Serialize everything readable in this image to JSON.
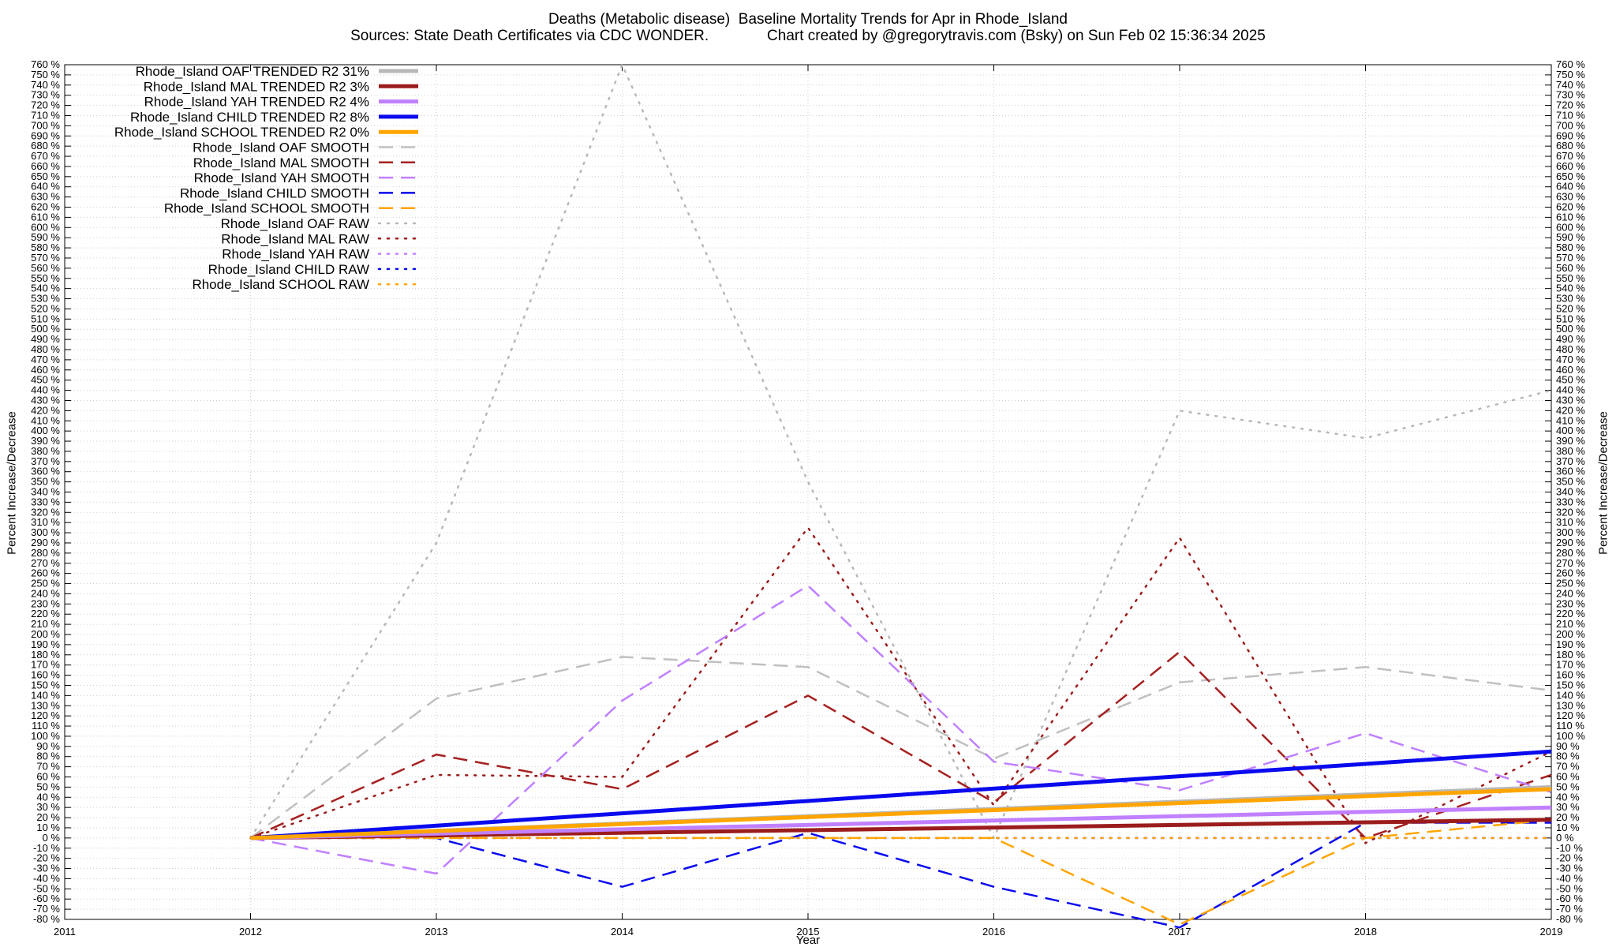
{
  "chart_data": {
    "type": "line",
    "title": "Deaths (Metabolic disease)  Baseline Mortality Trends for Apr in Rhode_Island",
    "subtitle": "Sources: State Death Certificates via CDC WONDER.              Chart created by @gregorytravis.com (Bsky) on Sun Feb 02 15:36:34 2025",
    "xlabel": "Year",
    "ylabel": "Percent Increase/Decrease",
    "ylabel_right": "Percent Increase/Decrease",
    "xlim": [
      2011,
      2019
    ],
    "ylim": [
      -80,
      760
    ],
    "x_ticks": [
      2011,
      2012,
      2013,
      2014,
      2015,
      2016,
      2017,
      2018,
      2019
    ],
    "y_tick_step": 10,
    "y_tick_suffix": " %",
    "grid": true,
    "legend_position": "top-left",
    "x": [
      2012,
      2013,
      2014,
      2015,
      2016,
      2017,
      2018,
      2019
    ],
    "series": [
      {
        "name": "Rhode_Island OAF TRENDED R2  31%",
        "color": "#b8b8b8",
        "style": "solid",
        "width": 5,
        "x": [
          2012,
          2019
        ],
        "values": [
          0,
          50
        ]
      },
      {
        "name": "Rhode_Island MAL TRENDED R2   3%",
        "color": "#9b1c1c",
        "style": "solid",
        "width": 5,
        "x": [
          2012,
          2019
        ],
        "values": [
          0,
          18
        ]
      },
      {
        "name": "Rhode_Island YAH TRENDED R2   4%",
        "color": "#c080ff",
        "style": "solid",
        "width": 5,
        "x": [
          2012,
          2019
        ],
        "values": [
          0,
          30
        ]
      },
      {
        "name": "Rhode_Island CHILD TRENDED R2   8%",
        "color": "#0a0aee",
        "style": "solid",
        "width": 5,
        "x": [
          2012,
          2019
        ],
        "values": [
          0,
          85
        ]
      },
      {
        "name": "Rhode_Island SCHOOL TRENDED R2   0%",
        "color": "#ffa500",
        "style": "solid",
        "width": 5,
        "x": [
          2012,
          2019
        ],
        "values": [
          0,
          48
        ]
      },
      {
        "name": "Rhode_Island OAF SMOOTH",
        "color": "#c0c0c0",
        "style": "dash",
        "width": 2.5,
        "values": [
          0,
          137,
          178,
          168,
          78,
          153,
          168,
          145
        ]
      },
      {
        "name": "Rhode_Island MAL SMOOTH",
        "color": "#a52020",
        "style": "dash",
        "width": 2.5,
        "values": [
          0,
          82,
          48,
          140,
          35,
          183,
          0,
          62
        ]
      },
      {
        "name": "Rhode_Island YAH SMOOTH",
        "color": "#c080ff",
        "style": "dash",
        "width": 2.5,
        "values": [
          0,
          -35,
          135,
          248,
          75,
          47,
          103,
          45
        ]
      },
      {
        "name": "Rhode_Island CHILD SMOOTH",
        "color": "#0a0aee",
        "style": "dash",
        "width": 2.5,
        "values": [
          0,
          0,
          -48,
          5,
          -48,
          -88,
          15,
          15
        ]
      },
      {
        "name": "Rhode_Island SCHOOL SMOOTH",
        "color": "#ffa500",
        "style": "dash",
        "width": 2.5,
        "values": [
          0,
          0,
          0,
          0,
          0,
          -85,
          0,
          18
        ]
      },
      {
        "name": "Rhode_Island OAF RAW",
        "color": "#b8b8b8",
        "style": "dot",
        "width": 2.5,
        "values": [
          0,
          290,
          760,
          350,
          0,
          420,
          393,
          440
        ]
      },
      {
        "name": "Rhode_Island MAL RAW",
        "color": "#9b1c1c",
        "style": "dot",
        "width": 2.5,
        "values": [
          0,
          62,
          60,
          305,
          32,
          295,
          -5,
          85
        ]
      },
      {
        "name": "Rhode_Island YAH RAW",
        "color": "#c080ff",
        "style": "dot",
        "width": 2.5,
        "values": [
          0,
          0,
          0,
          0,
          0,
          0,
          0,
          0
        ]
      },
      {
        "name": "Rhode_Island CHILD RAW",
        "color": "#0a0aee",
        "style": "dot",
        "width": 2.5,
        "values": [
          0,
          0,
          0,
          0,
          0,
          0,
          0,
          0
        ]
      },
      {
        "name": "Rhode_Island SCHOOL RAW",
        "color": "#ffa500",
        "style": "dot",
        "width": 2.5,
        "values": [
          0,
          0,
          0,
          0,
          0,
          0,
          0,
          0
        ]
      }
    ]
  }
}
